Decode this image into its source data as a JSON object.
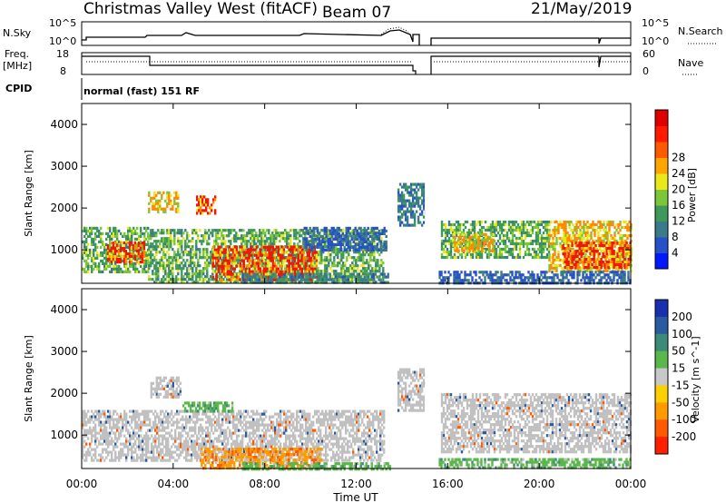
{
  "header": {
    "title": "Christmas Valley West (fitACF)",
    "beam": "Beam 07",
    "date": "21/May/2019"
  },
  "noise_panel": {
    "left_label": "N.Sky",
    "right_label": "N.Search",
    "left_ticks": [
      "10^5",
      "10^0"
    ],
    "right_ticks": [
      "10^5",
      "10^0"
    ]
  },
  "freq_panel": {
    "left_label_1": "Freq.",
    "left_label_2": "[MHz]",
    "right_label": "Nave",
    "left_ticks": [
      "18",
      "8"
    ],
    "right_ticks": [
      "60",
      "0"
    ]
  },
  "cpid": {
    "label": "CPID",
    "program": "normal (fast) 151 RF"
  },
  "time_axis": {
    "label": "Time UT",
    "ticks": [
      "00:00",
      "04:00",
      "08:00",
      "12:00",
      "16:00",
      "20:00",
      "00:00"
    ]
  },
  "colors": {
    "ground_scatter": "#c0c0c0",
    "data_gap": "#ffffff"
  },
  "chart_data": [
    {
      "type": "heatmap",
      "name": "power",
      "ylabel": "Slant Range [km]",
      "yticks": [
        1000,
        2000,
        3000,
        4000
      ],
      "ylim": [
        200,
        4500
      ],
      "xlim_hours": [
        0,
        24
      ],
      "data_gap_hours": [
        15.0,
        15.6
      ],
      "colorbar": {
        "label": "Power [dB]",
        "ticks": [
          4,
          8,
          12,
          16,
          20,
          24,
          28
        ],
        "colors": [
          "#0018ff",
          "#2850c8",
          "#3a7a8a",
          "#3f9a5a",
          "#7cc63a",
          "#e8e81a",
          "#ffa500",
          "#ff5a00",
          "#ff1a00",
          "#e00000"
        ]
      },
      "regions": [
        {
          "t0": 0.0,
          "t1": 2.9,
          "r0": 500,
          "r1": 1550,
          "level": "green"
        },
        {
          "t0": 1.1,
          "t1": 2.7,
          "r0": 700,
          "r1": 1200,
          "level": "red"
        },
        {
          "t0": 2.9,
          "t1": 4.2,
          "r0": 1900,
          "r1": 2400,
          "level": "orange"
        },
        {
          "t0": 5.0,
          "t1": 5.8,
          "r0": 1900,
          "r1": 2300,
          "level": "red"
        },
        {
          "t0": 2.9,
          "t1": 13.2,
          "r0": 250,
          "r1": 1500,
          "level": "green"
        },
        {
          "t0": 5.7,
          "t1": 10.3,
          "r0": 300,
          "r1": 1100,
          "level": "red"
        },
        {
          "t0": 7.0,
          "t1": 13.4,
          "r0": 200,
          "r1": 450,
          "level": "teal"
        },
        {
          "t0": 9.7,
          "t1": 13.3,
          "r0": 1000,
          "r1": 1550,
          "level": "blue"
        },
        {
          "t0": 13.8,
          "t1": 15.0,
          "r0": 1600,
          "r1": 2600,
          "level": "teal"
        },
        {
          "t0": 15.7,
          "t1": 20.4,
          "r0": 800,
          "r1": 1700,
          "level": "green"
        },
        {
          "t0": 16.2,
          "t1": 18.0,
          "r0": 1000,
          "r1": 1400,
          "level": "orange"
        },
        {
          "t0": 20.4,
          "t1": 24.0,
          "r0": 500,
          "r1": 1700,
          "level": "orange"
        },
        {
          "t0": 21.0,
          "t1": 24.0,
          "r0": 600,
          "r1": 1200,
          "level": "red"
        },
        {
          "t0": 15.6,
          "t1": 24.0,
          "r0": 200,
          "r1": 500,
          "level": "blue"
        }
      ]
    },
    {
      "type": "heatmap",
      "name": "velocity",
      "ylabel": "Slant Range [km]",
      "yticks": [
        1000,
        2000,
        3000,
        4000
      ],
      "ylim": [
        200,
        4500
      ],
      "xlim_hours": [
        0,
        24
      ],
      "colorbar": {
        "label": "Velocity [m s^-1]",
        "ticks": [
          200,
          100,
          50,
          15,
          -15,
          -50,
          -100,
          -200
        ],
        "colors": [
          "#1830b0",
          "#2a5aa0",
          "#3c8a78",
          "#5ab84a",
          "#c8c8c8",
          "#ffd000",
          "#ff9a00",
          "#ff5a00",
          "#ff2000"
        ]
      },
      "regions": [
        {
          "t0": 0.0,
          "t1": 13.2,
          "r0": 400,
          "r1": 1600,
          "level": "ground"
        },
        {
          "t0": 3.0,
          "t1": 4.3,
          "r0": 1900,
          "r1": 2400,
          "level": "ground"
        },
        {
          "t0": 5.2,
          "t1": 10.5,
          "r0": 200,
          "r1": 700,
          "level": "orange"
        },
        {
          "t0": 4.4,
          "t1": 6.6,
          "r0": 1600,
          "r1": 1800,
          "level": "green"
        },
        {
          "t0": 7.0,
          "t1": 13.5,
          "r0": 200,
          "r1": 350,
          "level": "green"
        },
        {
          "t0": 13.8,
          "t1": 15.0,
          "r0": 1600,
          "r1": 2600,
          "level": "ground"
        },
        {
          "t0": 15.7,
          "t1": 24.0,
          "r0": 600,
          "r1": 2000,
          "level": "ground"
        },
        {
          "t0": 15.6,
          "t1": 24.0,
          "r0": 200,
          "r1": 450,
          "level": "green"
        }
      ]
    }
  ]
}
